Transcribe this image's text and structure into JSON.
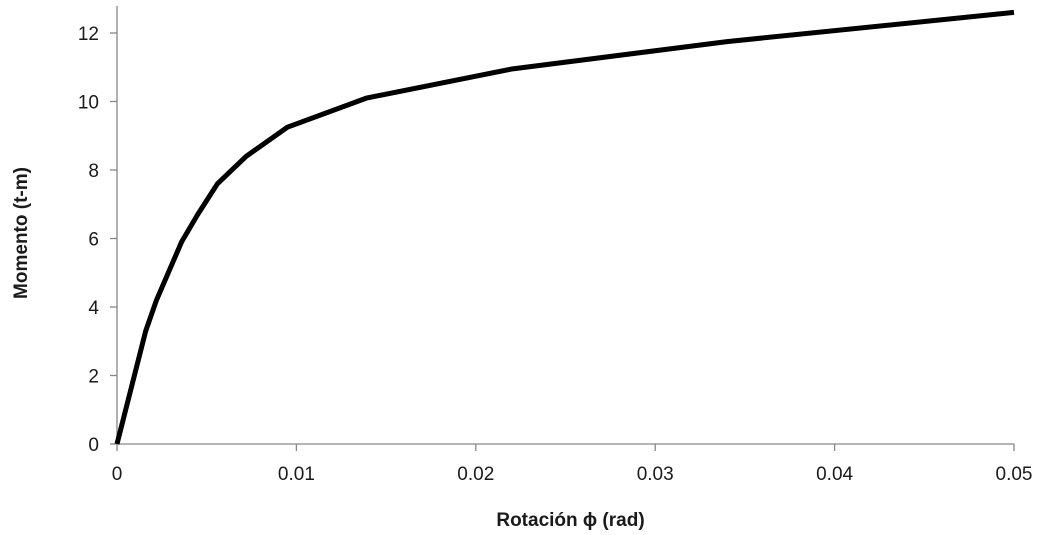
{
  "chart_data": {
    "type": "line",
    "title": "",
    "xlabel": "Rotación ϕ (rad)",
    "ylabel": "Momento (t-m)",
    "xlim": [
      0,
      0.05
    ],
    "ylim": [
      0,
      12.5
    ],
    "xticks": [
      0,
      0.01,
      0.02,
      0.03,
      0.04,
      0.05
    ],
    "xtick_labels": [
      "0",
      "0.01",
      "0.02",
      "0.03",
      "0.04",
      "0.05"
    ],
    "yticks": [
      0,
      2,
      4,
      6,
      8,
      10,
      12
    ],
    "ytick_labels": [
      "0",
      "2",
      "4",
      "6",
      "8",
      "10",
      "12"
    ],
    "grid": false,
    "legend": "none",
    "series": [
      {
        "color": "#000000",
        "x": [
          0,
          0.0016,
          0.0022,
          0.0036,
          0.0045,
          0.0056,
          0.0072,
          0.0095,
          0.0139,
          0.022,
          0.034,
          0.05
        ],
        "y": [
          0,
          3.3,
          4.2,
          5.9,
          6.7,
          7.6,
          8.4,
          9.25,
          10.1,
          10.95,
          11.75,
          12.6
        ]
      }
    ]
  }
}
